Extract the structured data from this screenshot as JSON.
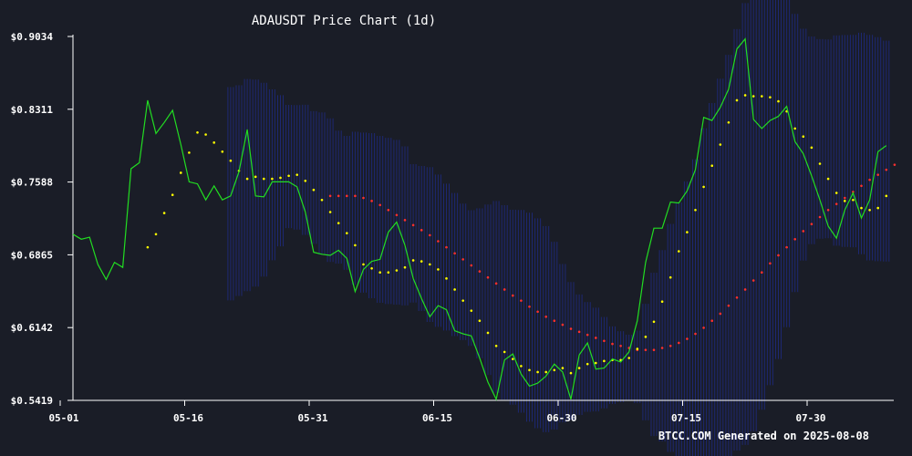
{
  "chart_data": {
    "type": "line",
    "title": "ADAUSDT Price Chart (1d)",
    "footer": "BTCC.COM Generated on 2025-08-08",
    "xlabel": "",
    "ylabel": "",
    "x_start": "2025-05-01",
    "x_ticks": [
      "05-01",
      "05-16",
      "05-31",
      "06-15",
      "06-30",
      "07-15",
      "07-30"
    ],
    "y_ticks": [
      "$0.5419",
      "$0.6142",
      "$0.6865",
      "$0.7588",
      "$0.8311",
      "$0.9034"
    ],
    "ylim": [
      0.5419,
      0.9034
    ],
    "grid": false,
    "legend": "none",
    "colors": {
      "background": "#1a1d27",
      "price": "#22dd22",
      "ma_short": "#ffff00",
      "ma_long": "#ff3030",
      "bands": "#1e2a80",
      "axis": "#ffffff"
    },
    "series": [
      {
        "values": [
          0.707,
          0.702,
          0.704,
          0.677,
          0.662,
          0.679,
          0.674,
          0.772,
          0.778,
          0.84,
          0.807,
          0.818,
          0.83,
          0.796,
          0.759,
          0.757,
          0.741,
          0.755,
          0.741,
          0.745,
          0.769,
          0.811,
          0.745,
          0.744,
          0.759,
          0.759,
          0.759,
          0.754,
          0.729,
          0.689,
          0.687,
          0.686,
          0.691,
          0.683,
          0.65,
          0.672,
          0.68,
          0.682,
          0.709,
          0.719,
          0.696,
          0.663,
          0.643,
          0.625,
          0.636,
          0.632,
          0.611,
          0.608,
          0.606,
          0.584,
          0.56,
          0.543,
          0.582,
          0.588,
          0.568,
          0.556,
          0.559,
          0.566,
          0.578,
          0.57,
          0.543,
          0.587,
          0.599,
          0.573,
          0.574,
          0.583,
          0.58,
          0.59,
          0.621,
          0.679,
          0.713,
          0.713,
          0.739,
          0.738,
          0.75,
          0.771,
          0.823,
          0.82,
          0.833,
          0.851,
          0.891,
          0.901,
          0.821,
          0.812,
          0.82,
          0.824,
          0.834,
          0.799,
          0.787,
          0.765,
          0.741,
          0.715,
          0.703,
          0.731,
          0.748,
          0.723,
          0.741,
          0.789,
          0.795
        ]
      },
      {
        "values": [
          null,
          null,
          null,
          null,
          null,
          null,
          null,
          null,
          null,
          0.694,
          0.707,
          0.728,
          0.746,
          0.768,
          0.788,
          0.808,
          0.806,
          0.798,
          0.789,
          0.78,
          0.77,
          0.762,
          0.764,
          0.762,
          0.762,
          0.763,
          0.765,
          0.766,
          0.76,
          0.751,
          0.741,
          0.729,
          0.718,
          0.708,
          0.696,
          0.677,
          0.673,
          0.669,
          0.669,
          0.671,
          0.674,
          0.681,
          0.68,
          0.677,
          0.672,
          0.663,
          0.652,
          0.641,
          0.631,
          0.621,
          0.609,
          0.596,
          0.59,
          0.583,
          0.576,
          0.572,
          0.57,
          0.57,
          0.572,
          0.574,
          0.569,
          0.574,
          0.578,
          0.579,
          0.581,
          0.582,
          0.582,
          0.584,
          0.593,
          0.605,
          0.62,
          0.64,
          0.664,
          0.69,
          0.709,
          0.731,
          0.754,
          0.775,
          0.796,
          0.818,
          0.84,
          0.845,
          0.844,
          0.844,
          0.843,
          0.839,
          0.829,
          0.812,
          0.804,
          0.793,
          0.777,
          0.762,
          0.748,
          0.74,
          0.741,
          0.733,
          0.731,
          0.733,
          0.745
        ]
      },
      {
        "values": [
          null,
          null,
          null,
          null,
          null,
          null,
          null,
          null,
          null,
          null,
          null,
          null,
          null,
          null,
          null,
          null,
          null,
          null,
          null,
          null,
          null,
          null,
          null,
          null,
          null,
          null,
          null,
          null,
          null,
          null,
          null,
          0.745,
          0.745,
          0.745,
          0.745,
          0.743,
          0.74,
          0.736,
          0.731,
          0.726,
          0.721,
          0.716,
          0.711,
          0.706,
          0.7,
          0.694,
          0.688,
          0.682,
          0.676,
          0.67,
          0.664,
          0.658,
          0.652,
          0.646,
          0.641,
          0.635,
          0.63,
          0.625,
          0.621,
          0.617,
          0.613,
          0.61,
          0.607,
          0.604,
          0.601,
          0.598,
          0.596,
          0.594,
          0.592,
          0.592,
          0.592,
          0.594,
          0.596,
          0.599,
          0.603,
          0.608,
          0.614,
          0.621,
          0.628,
          0.636,
          0.644,
          0.652,
          0.661,
          0.669,
          0.678,
          0.686,
          0.694,
          0.702,
          0.71,
          0.717,
          0.724,
          0.731,
          0.737,
          0.743,
          0.749,
          0.755,
          0.761,
          0.766,
          0.771,
          0.776
        ]
      }
    ]
  }
}
